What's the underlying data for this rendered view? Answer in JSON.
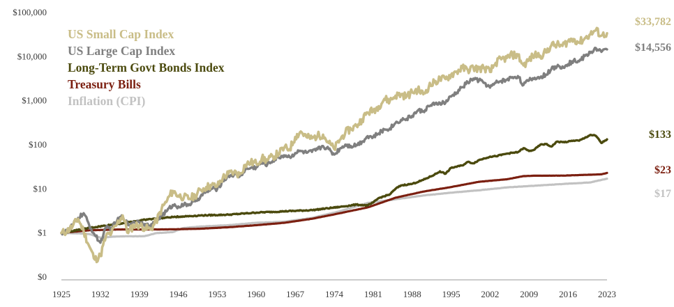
{
  "chart_data": {
    "type": "line",
    "title": "",
    "xlabel": "",
    "ylabel": "",
    "y_scale": "log",
    "xlim": [
      1925,
      2023
    ],
    "ylim": [
      0.1,
      100000
    ],
    "grid": false,
    "legend_position": "top-left",
    "x_ticks": [
      1925,
      1932,
      1939,
      1946,
      1953,
      1960,
      1967,
      1974,
      1981,
      1988,
      1995,
      2002,
      2009,
      2016,
      2023
    ],
    "x_tick_labels": [
      "1925",
      "1932",
      "1939",
      "1946",
      "1953",
      "1960",
      "1967",
      "1974",
      "1981",
      "1988",
      "1995",
      "2002",
      "2009",
      "2016",
      "2023"
    ],
    "y_ticks": [
      0.1,
      1,
      10,
      100,
      1000,
      10000,
      100000
    ],
    "y_tick_labels": [
      "$0",
      "$1",
      "$10",
      "$100",
      "$1,000",
      "$10,000",
      "$100,000"
    ],
    "series": [
      {
        "name": "US Small Cap Index",
        "color": "#c9bd87",
        "end_label": "$33,782",
        "points": [
          [
            1925,
            1
          ],
          [
            1926,
            1.1
          ],
          [
            1927,
            1.4
          ],
          [
            1928,
            2.1
          ],
          [
            1929,
            1.1
          ],
          [
            1930,
            0.5
          ],
          [
            1931,
            0.25
          ],
          [
            1932,
            0.3
          ],
          [
            1933,
            0.85
          ],
          [
            1934,
            1.0
          ],
          [
            1935,
            1.6
          ],
          [
            1936,
            2.5
          ],
          [
            1937,
            1.0
          ],
          [
            1938,
            1.5
          ],
          [
            1939,
            1.5
          ],
          [
            1940,
            1.3
          ],
          [
            1941,
            1.2
          ],
          [
            1942,
            1.8
          ],
          [
            1943,
            3.5
          ],
          [
            1944,
            5.5
          ],
          [
            1945,
            9
          ],
          [
            1946,
            7
          ],
          [
            1947,
            6.5
          ],
          [
            1948,
            6
          ],
          [
            1949,
            7
          ],
          [
            1950,
            9.5
          ],
          [
            1951,
            11
          ],
          [
            1952,
            12
          ],
          [
            1953,
            11.5
          ],
          [
            1954,
            18
          ],
          [
            1955,
            22
          ],
          [
            1956,
            24
          ],
          [
            1957,
            21
          ],
          [
            1958,
            35
          ],
          [
            1959,
            40
          ],
          [
            1960,
            38
          ],
          [
            1961,
            50
          ],
          [
            1962,
            44
          ],
          [
            1963,
            54
          ],
          [
            1964,
            64
          ],
          [
            1965,
            85
          ],
          [
            1966,
            80
          ],
          [
            1967,
            150
          ],
          [
            1968,
            200
          ],
          [
            1969,
            150
          ],
          [
            1970,
            140
          ],
          [
            1971,
            160
          ],
          [
            1972,
            170
          ],
          [
            1973,
            110
          ],
          [
            1974,
            80
          ],
          [
            1975,
            130
          ],
          [
            1976,
            190
          ],
          [
            1977,
            230
          ],
          [
            1978,
            270
          ],
          [
            1979,
            380
          ],
          [
            1980,
            540
          ],
          [
            1981,
            600
          ],
          [
            1982,
            750
          ],
          [
            1983,
            1100
          ],
          [
            1984,
            1000
          ],
          [
            1985,
            1300
          ],
          [
            1986,
            1400
          ],
          [
            1987,
            1250
          ],
          [
            1988,
            1550
          ],
          [
            1989,
            1800
          ],
          [
            1990,
            1400
          ],
          [
            1991,
            2100
          ],
          [
            1992,
            2600
          ],
          [
            1993,
            3100
          ],
          [
            1994,
            3100
          ],
          [
            1995,
            3900
          ],
          [
            1996,
            4600
          ],
          [
            1997,
            5500
          ],
          [
            1998,
            5000
          ],
          [
            1999,
            5600
          ],
          [
            2000,
            5300
          ],
          [
            2001,
            5600
          ],
          [
            2002,
            4500
          ],
          [
            2003,
            7200
          ],
          [
            2004,
            8700
          ],
          [
            2005,
            9300
          ],
          [
            2006,
            11000
          ],
          [
            2007,
            10500
          ],
          [
            2008,
            6300
          ],
          [
            2009,
            8500
          ],
          [
            2010,
            11000
          ],
          [
            2011,
            10500
          ],
          [
            2012,
            12500
          ],
          [
            2013,
            18000
          ],
          [
            2014,
            18500
          ],
          [
            2015,
            17500
          ],
          [
            2016,
            22500
          ],
          [
            2017,
            25000
          ],
          [
            2018,
            21000
          ],
          [
            2019,
            26000
          ],
          [
            2020,
            32000
          ],
          [
            2021,
            40000
          ],
          [
            2022,
            30000
          ],
          [
            2023,
            33782
          ]
        ]
      },
      {
        "name": "US Large Cap Index",
        "color": "#7f7f7f",
        "end_label": "$14,556",
        "points": [
          [
            1925,
            1
          ],
          [
            1926,
            1.1
          ],
          [
            1927,
            1.5
          ],
          [
            1928,
            2.2
          ],
          [
            1929,
            2.8
          ],
          [
            1930,
            1.5
          ],
          [
            1931,
            0.9
          ],
          [
            1932,
            0.6
          ],
          [
            1933,
            1.3
          ],
          [
            1934,
            1.3
          ],
          [
            1935,
            1.9
          ],
          [
            1936,
            2.4
          ],
          [
            1937,
            1.5
          ],
          [
            1938,
            1.8
          ],
          [
            1939,
            1.8
          ],
          [
            1940,
            1.6
          ],
          [
            1941,
            1.4
          ],
          [
            1942,
            1.8
          ],
          [
            1943,
            2.5
          ],
          [
            1944,
            3.2
          ],
          [
            1945,
            4.3
          ],
          [
            1946,
            4.0
          ],
          [
            1947,
            4.3
          ],
          [
            1948,
            4.5
          ],
          [
            1949,
            5.2
          ],
          [
            1950,
            6.8
          ],
          [
            1951,
            8.5
          ],
          [
            1952,
            10
          ],
          [
            1953,
            10
          ],
          [
            1954,
            15
          ],
          [
            1955,
            20
          ],
          [
            1956,
            21
          ],
          [
            1957,
            19
          ],
          [
            1958,
            27
          ],
          [
            1959,
            30
          ],
          [
            1960,
            31
          ],
          [
            1961,
            39
          ],
          [
            1962,
            36
          ],
          [
            1963,
            44
          ],
          [
            1964,
            52
          ],
          [
            1965,
            58
          ],
          [
            1966,
            53
          ],
          [
            1967,
            65
          ],
          [
            1968,
            72
          ],
          [
            1969,
            66
          ],
          [
            1970,
            69
          ],
          [
            1971,
            79
          ],
          [
            1972,
            94
          ],
          [
            1973,
            80
          ],
          [
            1974,
            60
          ],
          [
            1975,
            82
          ],
          [
            1976,
            101
          ],
          [
            1977,
            94
          ],
          [
            1978,
            100
          ],
          [
            1979,
            118
          ],
          [
            1980,
            157
          ],
          [
            1981,
            149
          ],
          [
            1982,
            181
          ],
          [
            1983,
            222
          ],
          [
            1984,
            236
          ],
          [
            1985,
            311
          ],
          [
            1986,
            369
          ],
          [
            1987,
            388
          ],
          [
            1988,
            453
          ],
          [
            1989,
            596
          ],
          [
            1990,
            577
          ],
          [
            1991,
            753
          ],
          [
            1992,
            810
          ],
          [
            1993,
            891
          ],
          [
            1994,
            903
          ],
          [
            1995,
            1242
          ],
          [
            1996,
            1527
          ],
          [
            1997,
            2037
          ],
          [
            1998,
            2619
          ],
          [
            1999,
            3170
          ],
          [
            2000,
            2881
          ],
          [
            2001,
            2539
          ],
          [
            2002,
            1978
          ],
          [
            2003,
            2545
          ],
          [
            2004,
            2822
          ],
          [
            2005,
            2960
          ],
          [
            2006,
            3427
          ],
          [
            2007,
            3615
          ],
          [
            2008,
            2278
          ],
          [
            2009,
            2880
          ],
          [
            2010,
            3314
          ],
          [
            2011,
            3384
          ],
          [
            2012,
            3925
          ],
          [
            2013,
            5196
          ],
          [
            2014,
            5907
          ],
          [
            2015,
            5989
          ],
          [
            2016,
            6705
          ],
          [
            2017,
            8169
          ],
          [
            2018,
            7811
          ],
          [
            2019,
            10270
          ],
          [
            2020,
            12160
          ],
          [
            2021,
            15650
          ],
          [
            2022,
            12810
          ],
          [
            2023,
            14556
          ]
        ]
      },
      {
        "name": "Long-Term Govt Bonds Index",
        "color": "#4b4a0e",
        "end_label": "$133",
        "points": [
          [
            1925,
            1
          ],
          [
            1930,
            1.3
          ],
          [
            1935,
            1.6
          ],
          [
            1940,
            2.0
          ],
          [
            1945,
            2.3
          ],
          [
            1950,
            2.5
          ],
          [
            1955,
            2.6
          ],
          [
            1960,
            2.9
          ],
          [
            1965,
            3.1
          ],
          [
            1970,
            3.3
          ],
          [
            1975,
            3.9
          ],
          [
            1978,
            4.4
          ],
          [
            1980,
            4.2
          ],
          [
            1981,
            4.9
          ],
          [
            1982,
            6.2
          ],
          [
            1984,
            7.5
          ],
          [
            1985,
            10
          ],
          [
            1986,
            12
          ],
          [
            1988,
            13
          ],
          [
            1990,
            16
          ],
          [
            1992,
            21
          ],
          [
            1993,
            25
          ],
          [
            1994,
            22
          ],
          [
            1995,
            30
          ],
          [
            1997,
            34
          ],
          [
            1998,
            41
          ],
          [
            1999,
            38
          ],
          [
            2000,
            45
          ],
          [
            2002,
            54
          ],
          [
            2003,
            55
          ],
          [
            2005,
            63
          ],
          [
            2007,
            68
          ],
          [
            2008,
            84
          ],
          [
            2009,
            72
          ],
          [
            2010,
            78
          ],
          [
            2011,
            100
          ],
          [
            2012,
            104
          ],
          [
            2013,
            91
          ],
          [
            2014,
            118
          ],
          [
            2015,
            115
          ],
          [
            2016,
            117
          ],
          [
            2017,
            125
          ],
          [
            2018,
            124
          ],
          [
            2019,
            143
          ],
          [
            2020,
            168
          ],
          [
            2021,
            160
          ],
          [
            2022,
            110
          ],
          [
            2023,
            133
          ]
        ]
      },
      {
        "name": "Treasury Bills",
        "color": "#7b1f10",
        "end_label": "$23",
        "points": [
          [
            1925,
            1
          ],
          [
            1930,
            1.15
          ],
          [
            1935,
            1.2
          ],
          [
            1940,
            1.2
          ],
          [
            1945,
            1.21
          ],
          [
            1950,
            1.25
          ],
          [
            1955,
            1.35
          ],
          [
            1960,
            1.5
          ],
          [
            1965,
            1.7
          ],
          [
            1970,
            2.1
          ],
          [
            1975,
            2.8
          ],
          [
            1980,
            3.8
          ],
          [
            1985,
            6.3
          ],
          [
            1990,
            8.7
          ],
          [
            1995,
            11
          ],
          [
            2000,
            14.5
          ],
          [
            2005,
            16.5
          ],
          [
            2008,
            19.5
          ],
          [
            2010,
            19.9
          ],
          [
            2015,
            20
          ],
          [
            2020,
            21
          ],
          [
            2022,
            21.4
          ],
          [
            2023,
            23
          ]
        ]
      },
      {
        "name": "Inflation (CPI)",
        "color": "#c2c2c2",
        "end_label": "$17",
        "points": [
          [
            1925,
            1
          ],
          [
            1928,
            0.98
          ],
          [
            1930,
            0.95
          ],
          [
            1932,
            0.78
          ],
          [
            1934,
            0.82
          ],
          [
            1936,
            0.84
          ],
          [
            1938,
            0.84
          ],
          [
            1940,
            0.85
          ],
          [
            1942,
            0.99
          ],
          [
            1945,
            1.05
          ],
          [
            1947,
            1.3
          ],
          [
            1950,
            1.4
          ],
          [
            1955,
            1.5
          ],
          [
            1960,
            1.7
          ],
          [
            1965,
            1.8
          ],
          [
            1970,
            2.2
          ],
          [
            1975,
            3.1
          ],
          [
            1980,
            4.8
          ],
          [
            1985,
            5.8
          ],
          [
            1990,
            7.1
          ],
          [
            1995,
            8.2
          ],
          [
            2000,
            9.3
          ],
          [
            2005,
            10.8
          ],
          [
            2010,
            11.8
          ],
          [
            2015,
            12.9
          ],
          [
            2020,
            14.0
          ],
          [
            2021,
            15.0
          ],
          [
            2022,
            16.0
          ],
          [
            2023,
            17
          ]
        ]
      }
    ]
  }
}
